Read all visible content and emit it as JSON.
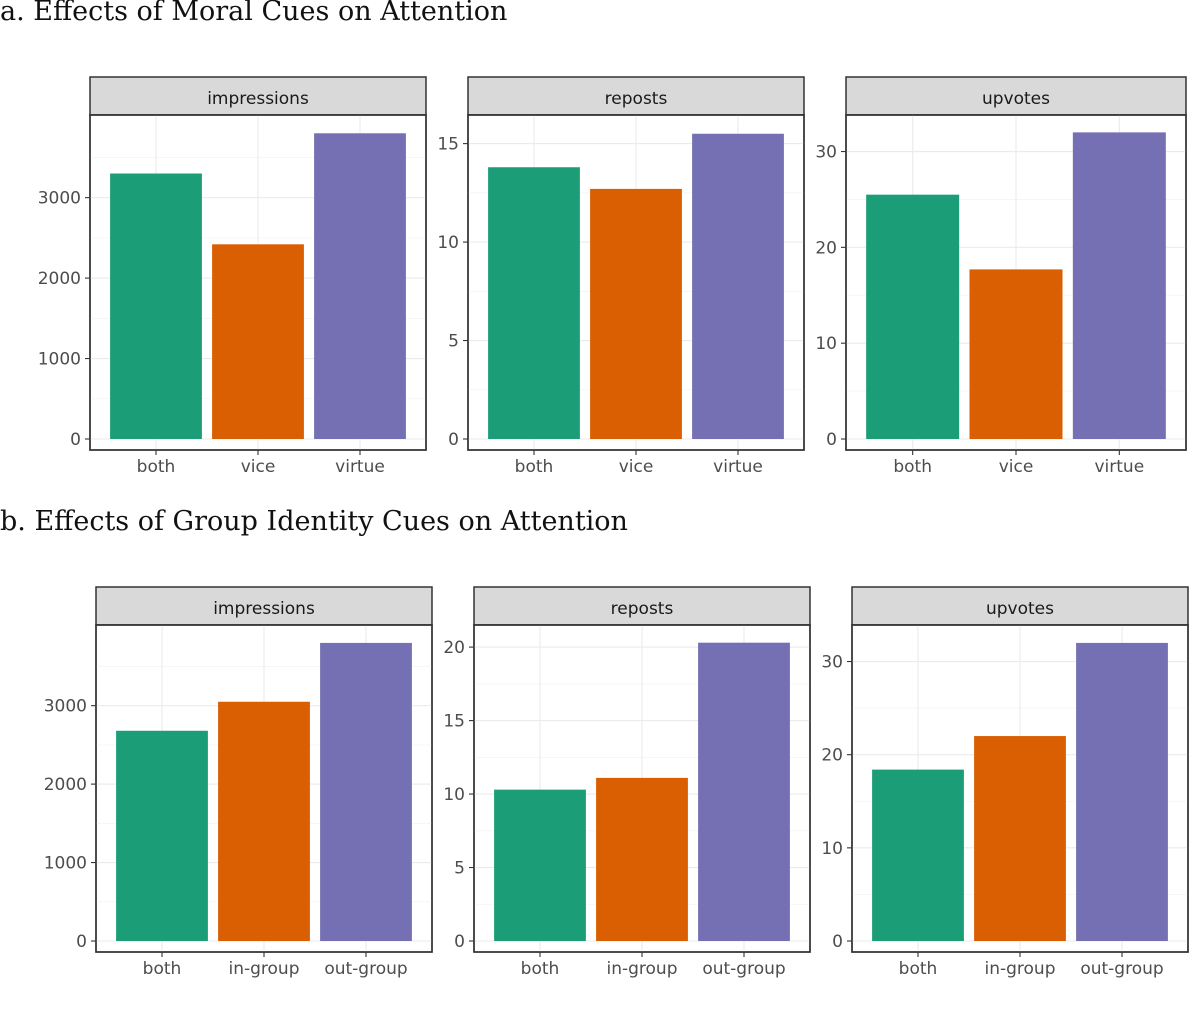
{
  "titles": {
    "a": "a. Effects of Moral Cues on Attention",
    "b": "b. Effects of Group Identity Cues on Attention"
  },
  "colors": {
    "bar_1": "#1b9e77",
    "bar_2": "#d95f02",
    "bar_3": "#7570b3",
    "strip": "#d9d9d9",
    "grid": "#ebebeb"
  },
  "chart_data": [
    {
      "type": "bar",
      "row": "a",
      "facet": "impressions",
      "categories": [
        "both",
        "vice",
        "virtue"
      ],
      "values": [
        3300,
        2420,
        3800
      ],
      "ylim": [
        0,
        3990
      ],
      "yticks": [
        0,
        1000,
        2000,
        3000
      ],
      "grid": true
    },
    {
      "type": "bar",
      "row": "a",
      "facet": "reposts",
      "categories": [
        "both",
        "vice",
        "virtue"
      ],
      "values": [
        13.8,
        12.7,
        15.5
      ],
      "ylim": [
        0,
        16.3
      ],
      "yticks": [
        0,
        5,
        10,
        15
      ],
      "grid": true
    },
    {
      "type": "bar",
      "row": "a",
      "facet": "upvotes",
      "categories": [
        "both",
        "vice",
        "virtue"
      ],
      "values": [
        25.5,
        17.7,
        32.0
      ],
      "ylim": [
        0,
        33.5
      ],
      "yticks": [
        0,
        10,
        20,
        30
      ],
      "grid": true
    },
    {
      "type": "bar",
      "row": "b",
      "facet": "impressions",
      "categories": [
        "both",
        "in-group",
        "out-group"
      ],
      "values": [
        2680,
        3050,
        3800
      ],
      "ylim": [
        0,
        3990
      ],
      "yticks": [
        0,
        1000,
        2000,
        3000
      ],
      "grid": true
    },
    {
      "type": "bar",
      "row": "b",
      "facet": "reposts",
      "categories": [
        "both",
        "in-group",
        "out-group"
      ],
      "values": [
        10.3,
        11.1,
        20.3
      ],
      "ylim": [
        0,
        21.3
      ],
      "yticks": [
        0,
        5,
        10,
        15,
        20
      ],
      "grid": true
    },
    {
      "type": "bar",
      "row": "b",
      "facet": "upvotes",
      "categories": [
        "both",
        "in-group",
        "out-group"
      ],
      "values": [
        18.4,
        22.0,
        32.0
      ],
      "ylim": [
        0,
        33.6
      ],
      "yticks": [
        0,
        10,
        20,
        30
      ],
      "grid": true
    }
  ]
}
